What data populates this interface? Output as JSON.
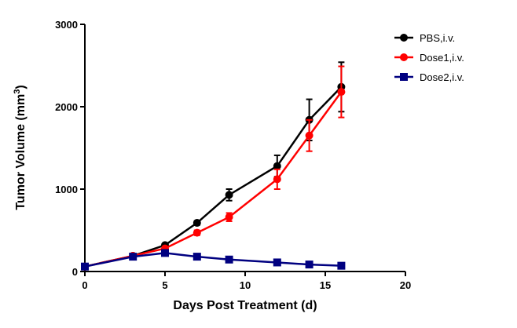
{
  "chart_data": {
    "type": "line",
    "title": "",
    "xlabel": "Days Post Treatment (d)",
    "ylabel": "Tumor Volume (mm",
    "ylabel_superscript": "3",
    "ylabel_suffix": ")",
    "xlim": [
      0,
      20
    ],
    "ylim": [
      0,
      3000
    ],
    "xticks": [
      0,
      5,
      10,
      15,
      20
    ],
    "yticks": [
      0,
      1000,
      2000,
      3000
    ],
    "grid": false,
    "legend_position": "top-right",
    "series": [
      {
        "name": "PBS,i.v.",
        "color": "#000000",
        "marker": "circle",
        "x": [
          0,
          3,
          5,
          7,
          9,
          12,
          14,
          16
        ],
        "y": [
          60,
          190,
          320,
          590,
          930,
          1280,
          1840,
          2240
        ],
        "error": [
          0,
          15,
          20,
          25,
          70,
          130,
          250,
          300
        ]
      },
      {
        "name": "Dose1,i.v.",
        "color": "#ff0000",
        "marker": "circle",
        "x": [
          0,
          3,
          5,
          7,
          9,
          12,
          14,
          16
        ],
        "y": [
          60,
          190,
          280,
          470,
          660,
          1120,
          1650,
          2180
        ],
        "error": [
          0,
          15,
          20,
          30,
          50,
          120,
          190,
          310
        ]
      },
      {
        "name": "Dose2,i.v.",
        "color": "#000080",
        "marker": "square",
        "x": [
          0,
          3,
          5,
          7,
          9,
          12,
          14,
          16
        ],
        "y": [
          60,
          180,
          225,
          180,
          145,
          110,
          85,
          70
        ],
        "error": [
          0,
          10,
          15,
          15,
          10,
          10,
          10,
          10
        ]
      }
    ]
  }
}
